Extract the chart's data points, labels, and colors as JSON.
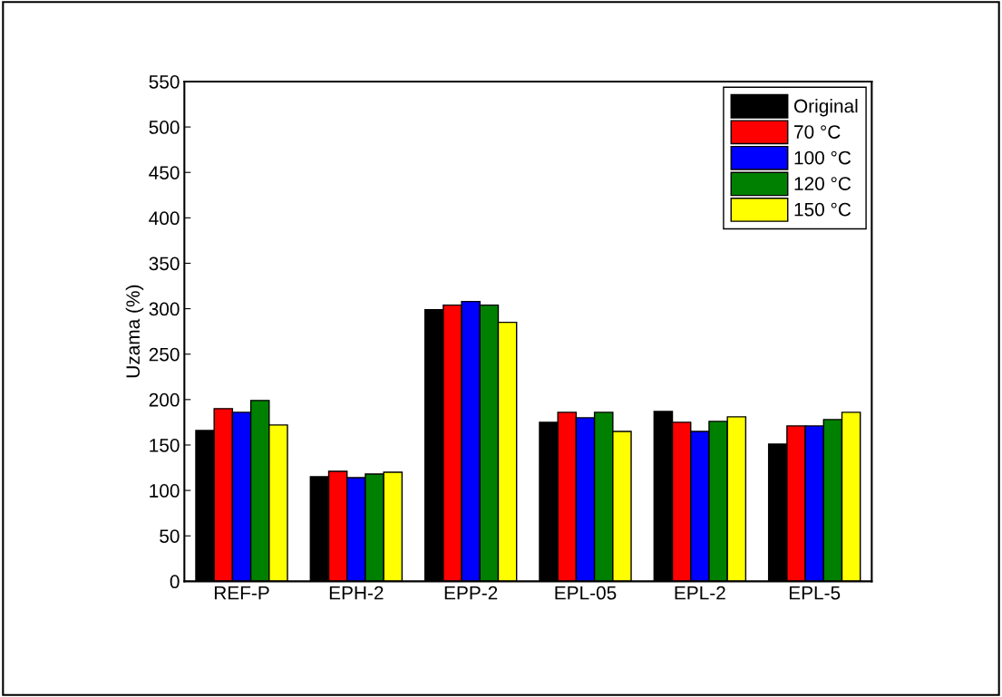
{
  "chart_data": {
    "type": "bar",
    "ylabel": "Uzama (%)",
    "categories": [
      "REF-P",
      "EPH-2",
      "EPP-2",
      "EPL-05",
      "EPL-2",
      "EPL-5"
    ],
    "series": [
      {
        "name": "Original",
        "color": "#000000",
        "values": [
          166,
          115,
          299,
          175,
          187,
          151
        ]
      },
      {
        "name": "70 °C",
        "color": "#ff0000",
        "values": [
          190,
          121,
          304,
          186,
          175,
          171
        ]
      },
      {
        "name": "100 °C",
        "color": "#0000ff",
        "values": [
          186,
          114,
          308,
          180,
          165,
          171
        ]
      },
      {
        "name": "120 °C",
        "color": "#008000",
        "values": [
          199,
          118,
          304,
          186,
          176,
          178
        ]
      },
      {
        "name": "150 °C",
        "color": "#ffff00",
        "values": [
          172,
          120,
          285,
          165,
          181,
          186
        ]
      }
    ],
    "ylim": [
      0,
      550
    ],
    "yticks": [
      0,
      50,
      100,
      150,
      200,
      250,
      300,
      350,
      400,
      450,
      500,
      550
    ],
    "legend": "top right",
    "grid": false
  }
}
